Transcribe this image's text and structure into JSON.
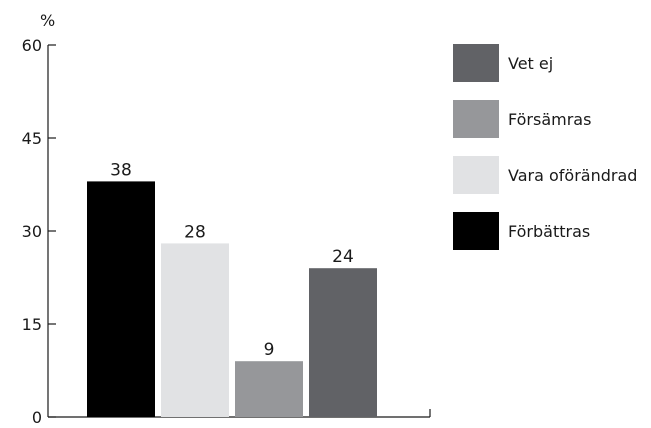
{
  "chart_data": {
    "type": "bar",
    "ylabel": "%",
    "ylim": [
      0,
      60
    ],
    "yticks": [
      0,
      15,
      30,
      45,
      60
    ],
    "grid": false,
    "legend_position": "right",
    "series": [
      {
        "name": "Förbättras",
        "value": 38,
        "color": "#000000"
      },
      {
        "name": "Vara oförändrad",
        "value": 28,
        "color": "#e1e2e4"
      },
      {
        "name": "Försämras",
        "value": 9,
        "color": "#96979a"
      },
      {
        "name": "Vet ej",
        "value": 24,
        "color": "#616266"
      }
    ],
    "legend_order": [
      "Vet ej",
      "Försämras",
      "Vara oförändrad",
      "Förbättras"
    ]
  }
}
